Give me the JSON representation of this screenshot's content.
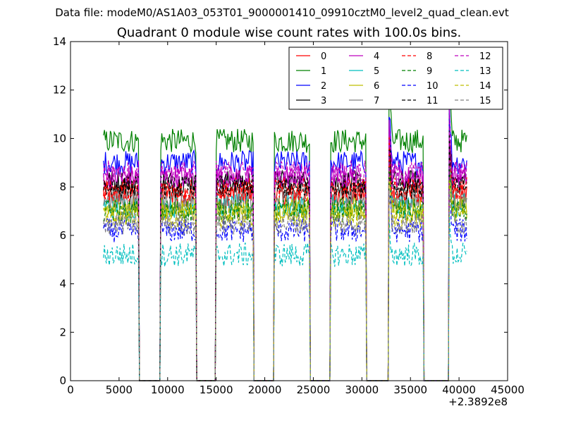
{
  "figure": {
    "suptitle": "Data file: modeM0/AS1A03_053T01_9000001410_09910cztM0_level2_quad_clean.evt",
    "title": "Quadrant 0 module wise count rates with 100.0s bins.",
    "x_offset_label": "+2.3892e8"
  },
  "chart_data": {
    "type": "line",
    "title": "Quadrant 0 module wise count rates with 100.0s bins.",
    "xlabel": "",
    "ylabel": "",
    "xlim": [
      0,
      45000
    ],
    "ylim": [
      0,
      14
    ],
    "x_offset": 238920000,
    "x_ticks": [
      0,
      5000,
      10000,
      15000,
      20000,
      25000,
      30000,
      35000,
      40000,
      45000
    ],
    "y_ticks": [
      0,
      2,
      4,
      6,
      8,
      10,
      12,
      14
    ],
    "grid": false,
    "legend_position": "top-right",
    "legend_columns": 4,
    "bin_size_s": 100,
    "orbit_segments": [
      {
        "start": 3400,
        "end": 7000
      },
      {
        "start": 9300,
        "end": 12900
      },
      {
        "start": 15000,
        "end": 18800
      },
      {
        "start": 21000,
        "end": 24600
      },
      {
        "start": 26800,
        "end": 30400
      },
      {
        "start": 32800,
        "end": 36300
      },
      {
        "start": 39000,
        "end": 40800
      }
    ],
    "series": [
      {
        "name": "0",
        "color": "#ff0000",
        "dash": "solid",
        "level": 7.7
      },
      {
        "name": "1",
        "color": "#008000",
        "dash": "solid",
        "level": 9.9
      },
      {
        "name": "2",
        "color": "#0000ff",
        "dash": "solid",
        "level": 9.0
      },
      {
        "name": "3",
        "color": "#000000",
        "dash": "solid",
        "level": 8.2
      },
      {
        "name": "4",
        "color": "#bf00bf",
        "dash": "solid",
        "level": 8.4
      },
      {
        "name": "5",
        "color": "#00bfbf",
        "dash": "solid",
        "level": 7.2
      },
      {
        "name": "6",
        "color": "#bfbf00",
        "dash": "solid",
        "level": 7.1
      },
      {
        "name": "7",
        "color": "#808080",
        "dash": "solid",
        "level": 7.5
      },
      {
        "name": "8",
        "color": "#ff0000",
        "dash": "dashed",
        "level": 7.9
      },
      {
        "name": "9",
        "color": "#008000",
        "dash": "dashed",
        "level": 7.0
      },
      {
        "name": "10",
        "color": "#0000ff",
        "dash": "dashed",
        "level": 6.2
      },
      {
        "name": "11",
        "color": "#000000",
        "dash": "dashed",
        "level": 8.0
      },
      {
        "name": "12",
        "color": "#bf00bf",
        "dash": "dashed",
        "level": 8.6
      },
      {
        "name": "13",
        "color": "#00bfbf",
        "dash": "dashed",
        "level": 5.2
      },
      {
        "name": "14",
        "color": "#bfbf00",
        "dash": "dashed",
        "level": 6.8
      },
      {
        "name": "15",
        "color": "#808080",
        "dash": "dashed",
        "level": 6.5
      }
    ]
  }
}
